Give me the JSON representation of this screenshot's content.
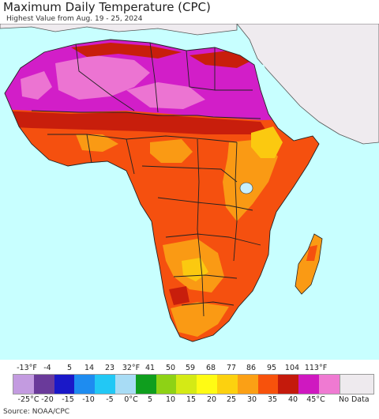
{
  "header": {
    "title": "Maximum Daily Temperature (CPC)",
    "subtitle": "Highest Value from Aug. 19 - 25, 2024"
  },
  "legend": {
    "fahrenheit_ticks": [
      "-13°F",
      "-4",
      "5",
      "14",
      "23",
      "32°F",
      "41",
      "50",
      "59",
      "68",
      "77",
      "86",
      "95",
      "104",
      "113°F"
    ],
    "celsius_ticks": [
      "-25°C",
      "-20",
      "-15",
      "-10",
      "-5",
      "0°C",
      "5",
      "10",
      "15",
      "20",
      "25",
      "30",
      "35",
      "40",
      "45°C"
    ],
    "colors": [
      "#c39be0",
      "#6a3a9a",
      "#1a18c8",
      "#1e8cf0",
      "#22c8f5",
      "#a8dcf5",
      "#0f9e1e",
      "#8ed215",
      "#d4ea15",
      "#fffb14",
      "#fcd10f",
      "#fba015",
      "#f7520c",
      "#c41a0c",
      "#cf18c0",
      "#ef7ad2"
    ],
    "no_data_label": "No Data",
    "no_data_color": "#eeeaee"
  },
  "source": "Source: NOAA/CPC",
  "map_colors": {
    "ocean": "#c8ffff",
    "no_data_land": "#efebef",
    "hot_magenta": "#d21ec8",
    "very_hot_pink": "#ec74d2",
    "dark_red": "#c81e0c",
    "red_orange": "#f5500f",
    "orange": "#fa9a14",
    "yellow_orange": "#fbc910",
    "border": "#222222"
  }
}
